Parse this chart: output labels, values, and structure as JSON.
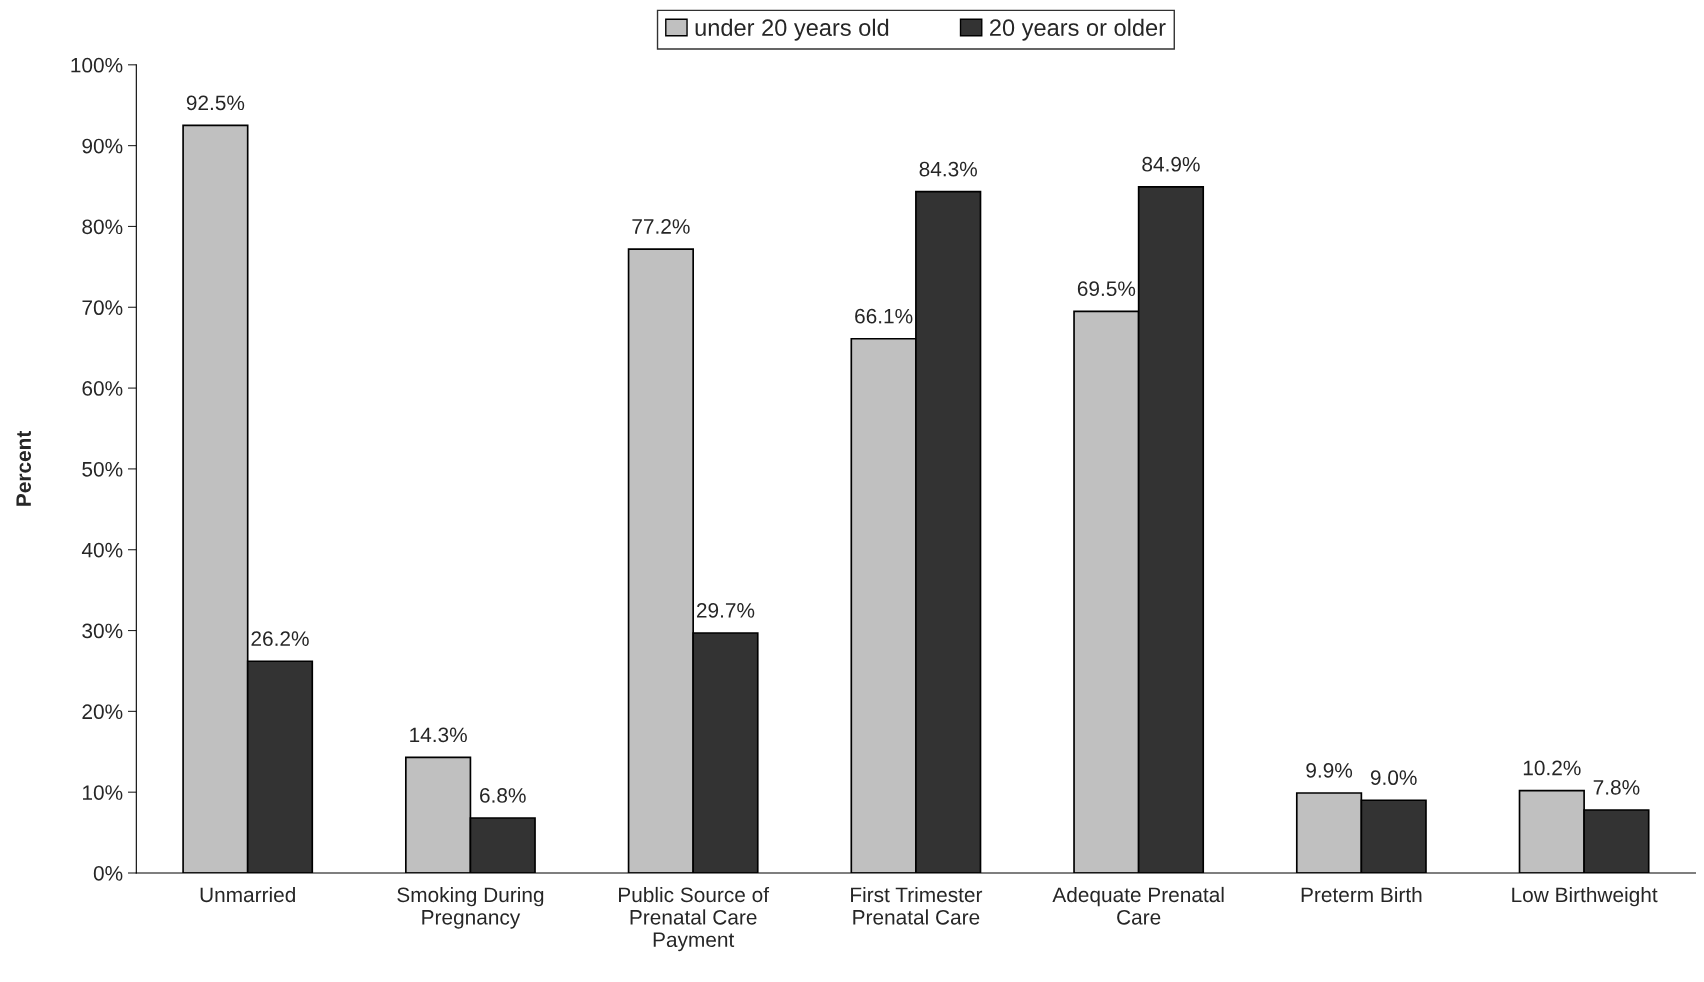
{
  "chart_data": {
    "type": "bar",
    "ylabel": "Percent",
    "categories": [
      "Unmarried",
      "Smoking During\nPregnancy",
      "Public Source of\nPrenatal Care\nPayment",
      "First Trimester\nPrenatal Care",
      "Adequate Prenatal\nCare",
      "Preterm Birth",
      "Low Birthweight"
    ],
    "series": [
      {
        "name": "under 20 years old",
        "color": "#c0c0c0",
        "values": [
          92.5,
          14.3,
          77.2,
          66.1,
          69.5,
          9.9,
          10.2
        ],
        "value_labels": [
          "92.5%",
          "14.3%",
          "77.2%",
          "66.1%",
          "69.5%",
          "9.9%",
          "10.2%"
        ]
      },
      {
        "name": "20 years or older",
        "color": "#333333",
        "values": [
          26.2,
          6.8,
          29.7,
          84.3,
          84.9,
          9.0,
          7.8
        ],
        "value_labels": [
          "26.2%",
          "6.8%",
          "29.7%",
          "84.3%",
          "84.9%",
          "9.0%",
          "7.8%"
        ]
      }
    ],
    "ylim": [
      0,
      100
    ],
    "yticks": [
      {
        "value": 0,
        "label": "0%"
      },
      {
        "value": 10,
        "label": "10%"
      },
      {
        "value": 20,
        "label": "20%"
      },
      {
        "value": 30,
        "label": "30%"
      },
      {
        "value": 40,
        "label": "40%"
      },
      {
        "value": 50,
        "label": "50%"
      },
      {
        "value": 60,
        "label": "60%"
      },
      {
        "value": 70,
        "label": "70%"
      },
      {
        "value": 80,
        "label": "80%"
      },
      {
        "value": 90,
        "label": "90%"
      },
      {
        "value": 100,
        "label": "100%"
      }
    ],
    "grid": false,
    "legend": "top"
  }
}
